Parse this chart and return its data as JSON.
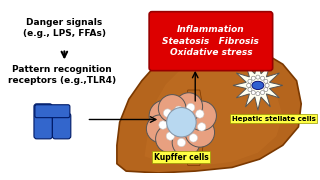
{
  "bg_color": "#ffffff",
  "liver_color": "#b5651d",
  "kupffer_body_color": "#e8a080",
  "kupffer_nucleus_color": "#add8e6",
  "stellate_spike_color": "#fffff0",
  "stellate_nucleus_color": "#3060d0",
  "receptor_color": "#3366cc",
  "red_box_color": "#dd0000",
  "yellow_label_color": "#ffff44",
  "text_danger": "Danger signals\n(e.g., LPS, FFAs)",
  "text_pattern": "Pattern recognition\nreceptors (e.g.,TLR4)",
  "text_inflammation": "Inflammation\nSteatosis   Fibrosis\nOxidative stress",
  "text_kupffer": "Kupffer cells",
  "text_stellate": "Hepatic stellate cells",
  "liver_outline": "#7a3800",
  "liver_bile_color": "#c87428"
}
